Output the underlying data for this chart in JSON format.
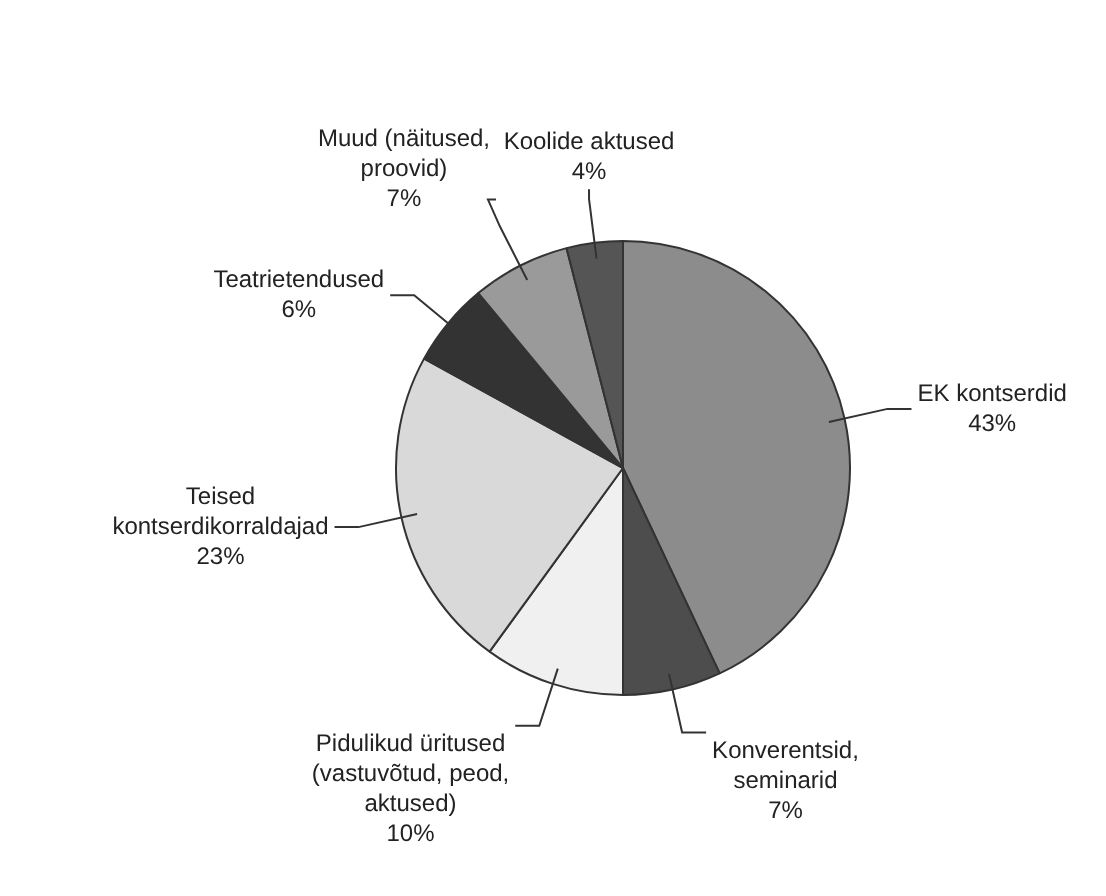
{
  "chart_data": {
    "type": "pie",
    "categories": [
      "EK kontserdid",
      "Konverentsid, seminarid",
      "Pidulikud üritused (vastuvõtud, peod, aktused)",
      "Teised kontserdikorraldajad",
      "Teatrietendused",
      "Muud (näitused, proovid)",
      "Koolide aktused"
    ],
    "values": [
      43,
      7,
      10,
      23,
      6,
      7,
      4
    ],
    "value_labels": [
      "43%",
      "7%",
      "10%",
      "23%",
      "6%",
      "7%",
      "4%"
    ],
    "colors": [
      "#8c8c8c",
      "#4d4d4d",
      "#f0f0f0",
      "#d9d9d9",
      "#333333",
      "#9a9a9a",
      "#555555"
    ],
    "legend": false
  }
}
